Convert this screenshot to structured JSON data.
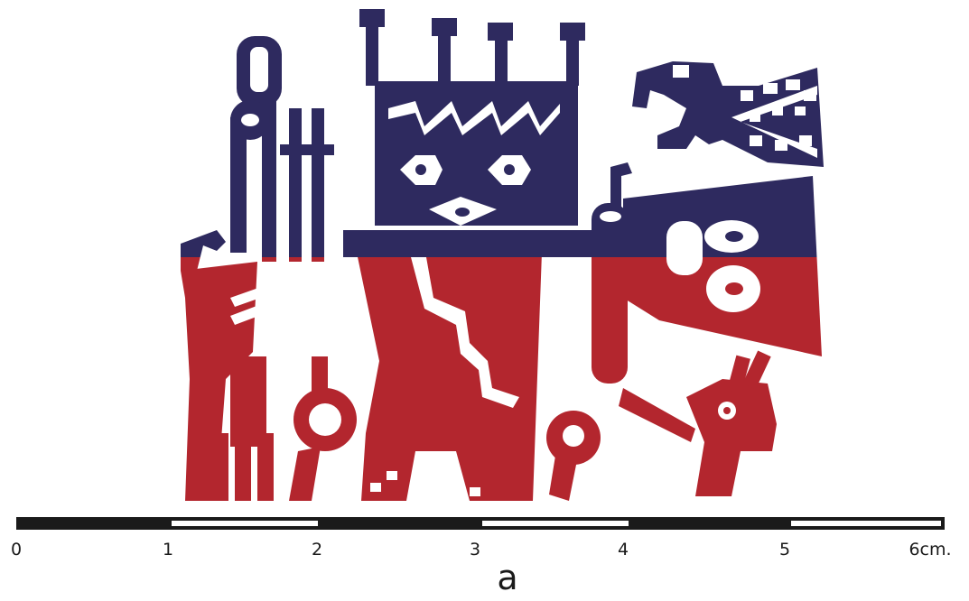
{
  "colors": {
    "navy": "#2e2a5f",
    "red": "#b3262e",
    "scale_bar": "#1a1a1a",
    "background": "#ffffff"
  },
  "scale_bar": {
    "tick_labels": [
      "0",
      "1",
      "2",
      "3",
      "4",
      "5",
      "6cm."
    ]
  },
  "figure_letter": "a"
}
